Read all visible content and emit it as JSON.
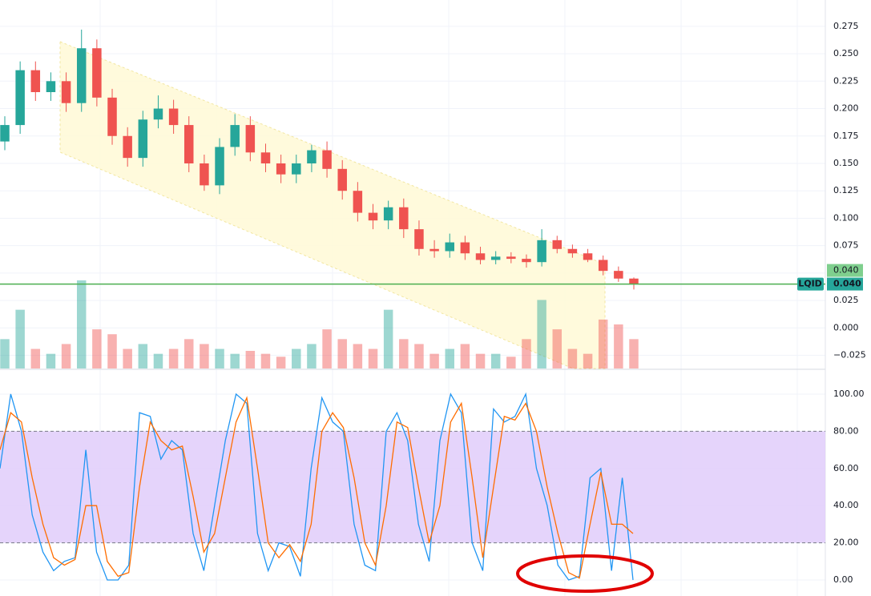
{
  "chart_data": [
    {
      "type": "candlestick",
      "symbol": "LQID",
      "open": [
        0.17,
        0.185,
        0.235,
        0.215,
        0.225,
        0.205,
        0.255,
        0.21,
        0.175,
        0.155,
        0.19,
        0.2,
        0.185,
        0.15,
        0.13,
        0.165,
        0.185,
        0.16,
        0.15,
        0.14,
        0.15,
        0.162,
        0.145,
        0.125,
        0.105,
        0.098,
        0.11,
        0.09,
        0.072,
        0.07,
        0.078,
        0.068,
        0.062,
        0.065,
        0.063,
        0.06,
        0.08,
        0.072,
        0.068,
        0.062,
        0.052,
        0.045
      ],
      "high": [
        0.193,
        0.243,
        0.243,
        0.233,
        0.233,
        0.272,
        0.263,
        0.218,
        0.183,
        0.198,
        0.212,
        0.208,
        0.193,
        0.158,
        0.173,
        0.195,
        0.193,
        0.168,
        0.158,
        0.158,
        0.167,
        0.17,
        0.153,
        0.133,
        0.113,
        0.116,
        0.118,
        0.098,
        0.08,
        0.086,
        0.084,
        0.074,
        0.07,
        0.069,
        0.067,
        0.09,
        0.084,
        0.076,
        0.072,
        0.066,
        0.056,
        0.046
      ],
      "low": [
        0.162,
        0.177,
        0.207,
        0.207,
        0.197,
        0.197,
        0.202,
        0.167,
        0.147,
        0.147,
        0.182,
        0.177,
        0.142,
        0.125,
        0.122,
        0.157,
        0.152,
        0.142,
        0.132,
        0.132,
        0.142,
        0.137,
        0.117,
        0.097,
        0.09,
        0.09,
        0.082,
        0.066,
        0.064,
        0.064,
        0.062,
        0.058,
        0.058,
        0.059,
        0.055,
        0.056,
        0.068,
        0.064,
        0.06,
        0.048,
        0.042,
        0.035
      ],
      "close": [
        0.185,
        0.235,
        0.215,
        0.225,
        0.205,
        0.255,
        0.21,
        0.175,
        0.155,
        0.19,
        0.2,
        0.185,
        0.15,
        0.13,
        0.165,
        0.185,
        0.16,
        0.15,
        0.14,
        0.15,
        0.162,
        0.145,
        0.125,
        0.105,
        0.098,
        0.11,
        0.09,
        0.072,
        0.07,
        0.078,
        0.068,
        0.062,
        0.065,
        0.063,
        0.06,
        0.08,
        0.072,
        0.068,
        0.062,
        0.052,
        0.045,
        0.04
      ],
      "volume": [
        30,
        60,
        20,
        15,
        25,
        90,
        40,
        35,
        20,
        25,
        15,
        20,
        30,
        25,
        20,
        15,
        18,
        15,
        12,
        20,
        25,
        40,
        30,
        25,
        20,
        60,
        30,
        25,
        15,
        20,
        25,
        15,
        15,
        12,
        30,
        70,
        40,
        20,
        15,
        50,
        45,
        30
      ],
      "up_color": "#26a69a",
      "down_color": "#ef5350",
      "ylim": [
        -0.037,
        0.299
      ],
      "yticks": [
        {
          "value": -0.025,
          "label": "−0.025"
        },
        {
          "value": 0,
          "label": "0.000"
        },
        {
          "value": 0.025,
          "label": "0.025"
        },
        {
          "value": 0.05,
          "label": "0.050"
        },
        {
          "value": 0.075,
          "label": "0.075"
        },
        {
          "value": 0.1,
          "label": "0.100"
        },
        {
          "value": 0.125,
          "label": "0.125"
        },
        {
          "value": 0.15,
          "label": "0.150"
        },
        {
          "value": 0.175,
          "label": "0.175"
        },
        {
          "value": 0.2,
          "label": "0.200"
        },
        {
          "value": 0.225,
          "label": "0.225"
        },
        {
          "value": 0.25,
          "label": "0.250"
        },
        {
          "value": 0.275,
          "label": "0.275"
        }
      ],
      "last_price": {
        "value": 0.04,
        "label": "0.040"
      },
      "close_label": {
        "value": 0.04,
        "label": "0.040"
      },
      "grid": true
    },
    {
      "type": "line",
      "series": [
        {
          "color": "#2196f3",
          "values": [
            60,
            100,
            80,
            35,
            15,
            5,
            10,
            12,
            70,
            15,
            0,
            0,
            8,
            90,
            88,
            65,
            75,
            70,
            25,
            5,
            40,
            75,
            100,
            95,
            25,
            5,
            20,
            18,
            2,
            60,
            98,
            85,
            80,
            30,
            8,
            5,
            80,
            90,
            75,
            30,
            10,
            75,
            100,
            90,
            20,
            5,
            92,
            85,
            88,
            100,
            60,
            40,
            8,
            0,
            2,
            55,
            60,
            5,
            55,
            0
          ]
        },
        {
          "color": "#ff6d00",
          "values": [
            70,
            90,
            85,
            55,
            30,
            12,
            8,
            11,
            40,
            40,
            10,
            2,
            4,
            50,
            85,
            75,
            70,
            72,
            45,
            15,
            25,
            55,
            85,
            98,
            60,
            20,
            12,
            19,
            10,
            30,
            80,
            90,
            82,
            55,
            20,
            8,
            40,
            85,
            82,
            50,
            20,
            40,
            85,
            95,
            55,
            12,
            50,
            88,
            86,
            95,
            80,
            50,
            25,
            4,
            1,
            30,
            58,
            30,
            30,
            25
          ]
        }
      ],
      "band": [
        20,
        80
      ],
      "band_color": "#e1cdfa",
      "ylim": [
        -8.6,
        112.9
      ],
      "yticks": [
        {
          "value": 0,
          "label": "0.00"
        },
        {
          "value": 20,
          "label": "20.00"
        },
        {
          "value": 40,
          "label": "40.00"
        },
        {
          "value": 60,
          "label": "60.00"
        },
        {
          "value": 80,
          "label": "80.00"
        },
        {
          "value": 100,
          "label": "100.00"
        }
      ],
      "grid": true
    }
  ]
}
